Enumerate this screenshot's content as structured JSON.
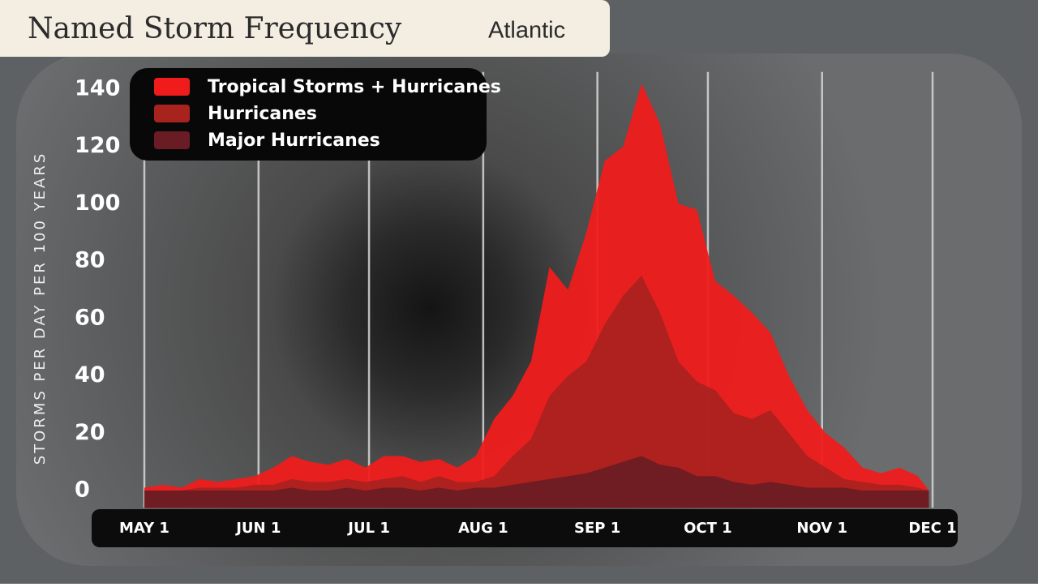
{
  "chart_data": {
    "type": "area",
    "title": "Named Storm Frequency",
    "subtitle": "Atlantic",
    "y_label": "STORMS PER DAY PER 100 YEARS",
    "x": [
      0,
      5,
      10,
      15,
      20,
      25,
      30,
      35,
      40,
      45,
      50,
      55,
      60,
      65,
      70,
      75,
      80,
      85,
      90,
      95,
      100,
      105,
      110,
      115,
      120,
      125,
      130,
      135,
      140,
      145,
      150,
      155,
      160,
      165,
      170,
      175,
      180,
      185,
      190,
      195,
      200,
      205,
      210,
      213
    ],
    "series": [
      {
        "name": "Tropical Storms + Hurricanes",
        "color": "#f01c1c",
        "values": [
          1,
          2,
          1,
          4,
          3,
          4,
          5,
          8,
          12,
          10,
          9,
          11,
          8,
          12,
          12,
          10,
          11,
          8,
          12,
          25,
          33,
          45,
          78,
          70,
          90,
          115,
          120,
          142,
          128,
          100,
          98,
          73,
          68,
          62,
          55,
          40,
          28,
          20,
          15,
          8,
          6,
          8,
          5,
          0
        ]
      },
      {
        "name": "Hurricanes",
        "color": "#a8221e",
        "values": [
          0,
          0,
          0,
          1,
          1,
          1,
          2,
          2,
          4,
          3,
          3,
          4,
          3,
          4,
          5,
          3,
          5,
          3,
          3,
          5,
          12,
          18,
          33,
          40,
          45,
          58,
          68,
          75,
          62,
          45,
          38,
          35,
          27,
          25,
          28,
          20,
          12,
          8,
          4,
          3,
          2,
          2,
          1,
          0
        ]
      },
      {
        "name": "Major Hurricanes",
        "color": "#6a1c24",
        "values": [
          0,
          0,
          0,
          0,
          0,
          0,
          0,
          0,
          1,
          0,
          0,
          1,
          0,
          1,
          1,
          0,
          1,
          0,
          1,
          1,
          2,
          3,
          4,
          5,
          6,
          8,
          10,
          12,
          9,
          8,
          5,
          5,
          3,
          2,
          3,
          2,
          1,
          1,
          1,
          0,
          0,
          0,
          0,
          0
        ]
      }
    ],
    "xlim": [
      0,
      214
    ],
    "xticks": [
      {
        "value": 0,
        "label": "MAY 1"
      },
      {
        "value": 31,
        "label": "JUN 1"
      },
      {
        "value": 61,
        "label": "JUL 1"
      },
      {
        "value": 92,
        "label": "AUG 1"
      },
      {
        "value": 123,
        "label": "SEP 1"
      },
      {
        "value": 153,
        "label": "OCT 1"
      },
      {
        "value": 184,
        "label": "NOV 1"
      },
      {
        "value": 214,
        "label": "DEC 1"
      }
    ],
    "ylim": [
      -6,
      146
    ],
    "yticks": [
      0,
      20,
      40,
      60,
      80,
      100,
      120,
      140
    ],
    "grid": true,
    "legend": "top-left"
  }
}
